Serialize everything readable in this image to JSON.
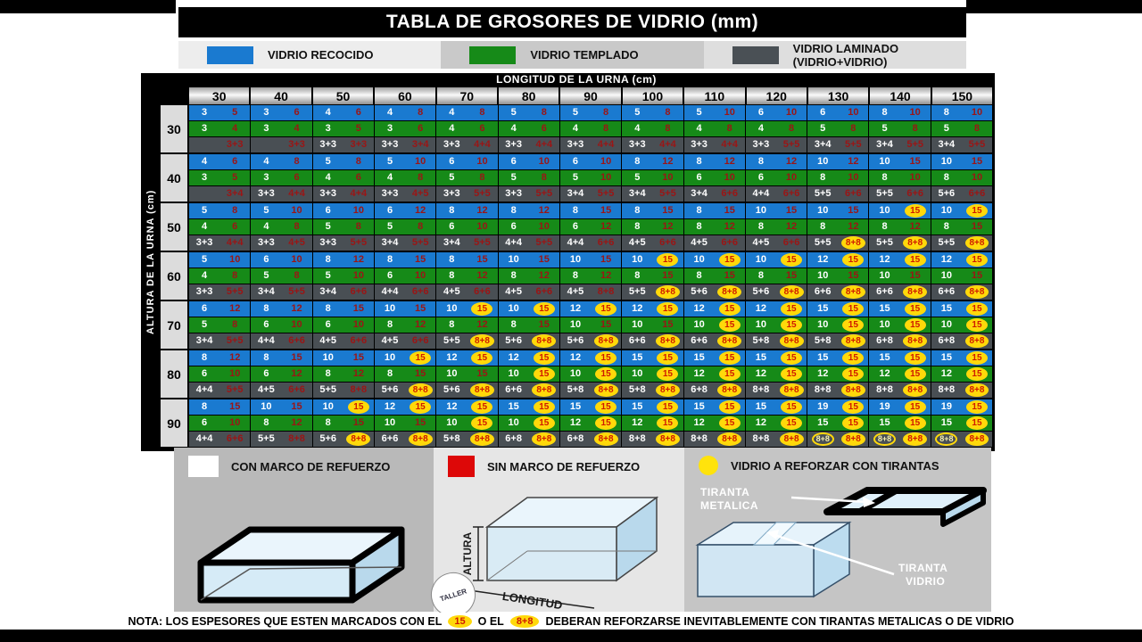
{
  "legend_top": {
    "items": [
      {
        "label": "VIDRIO RECOCIDO"
      },
      {
        "label": "VIDRIO TEMPLADO"
      },
      {
        "label": "VIDRIO LAMINADO (VIDRIO+VIDRIO)"
      }
    ]
  },
  "chart_data": {
    "type": "table",
    "title": "TABLA DE GROSORES DE VIDRIO (mm)",
    "col_axis_label": "LONGITUD DE LA URNA (cm)",
    "row_axis_label": "ALTURA DE LA URNA (cm)",
    "value_legend": "first value = con marco de refuerzo (white), second = sin marco de refuerzo (red), * = yellow circle (reforzar con tirantas), ^ = yellow ring",
    "columns": [
      "30",
      "40",
      "50",
      "60",
      "70",
      "80",
      "90",
      "100",
      "110",
      "120",
      "130",
      "140",
      "150"
    ],
    "rows": [
      {
        "altura": "30",
        "recocido": [
          "3;5",
          "3;6",
          "4;6",
          "4;8",
          "4;8",
          "5;8",
          "5;8",
          "5;8",
          "5;10",
          "6;10",
          "6;10",
          "8;10",
          "8;10"
        ],
        "templado": [
          "3;4",
          "3;4",
          "3;5",
          "3;6",
          "4;6",
          "4;6",
          "4;8",
          "4;8",
          "4;8",
          "4;8",
          "5;8",
          "5;8",
          "5;8"
        ],
        "laminado": [
          ";3+3",
          ";3+3",
          "3+3;3+3",
          "3+3;3+4",
          "3+3;4+4",
          "3+3;4+4",
          "3+3;4+4",
          "3+3;4+4",
          "3+3;4+4",
          "3+3;5+5",
          "3+4;5+5",
          "3+4;5+5",
          "3+4;5+5"
        ]
      },
      {
        "altura": "40",
        "recocido": [
          "4;6",
          "4;8",
          "5;8",
          "5;10",
          "6;10",
          "6;10",
          "6;10",
          "8;12",
          "8;12",
          "8;12",
          "10;12",
          "10;15",
          "10;15"
        ],
        "templado": [
          "3;5",
          "3;6",
          "4;6",
          "4;8",
          "5;8",
          "5;8",
          "5;10",
          "5;10",
          "6;10",
          "6;10",
          "8;10",
          "8;10",
          "8;10"
        ],
        "laminado": [
          ";3+4",
          "3+3;4+4",
          "3+3;4+4",
          "3+3;4+5",
          "3+3;5+5",
          "3+3;5+5",
          "3+4;5+5",
          "3+4;5+5",
          "3+4;6+6",
          "4+4;6+6",
          "5+5;6+6",
          "5+5;6+6",
          "5+6;6+6"
        ]
      },
      {
        "altura": "50",
        "recocido": [
          "5;8",
          "5;10",
          "6;10",
          "6;12",
          "8;12",
          "8;12",
          "8;15",
          "8;15",
          "8;15",
          "10;15",
          "10;15",
          "10;*15",
          "10;*15"
        ],
        "templado": [
          "4;6",
          "4;8",
          "5;8",
          "5;8",
          "6;10",
          "6;10",
          "6;12",
          "8;12",
          "8;12",
          "8;12",
          "8;12",
          "8;12",
          "8;15"
        ],
        "laminado": [
          "3+3;4+4",
          "3+3;4+5",
          "3+3;5+5",
          "3+4;5+5",
          "3+4;5+5",
          "4+4;5+5",
          "4+4;6+6",
          "4+5;6+6",
          "4+5;6+6",
          "4+5;6+6",
          "5+5;*8+8",
          "5+5;*8+8",
          "5+5;*8+8"
        ]
      },
      {
        "altura": "60",
        "recocido": [
          "5;10",
          "6;10",
          "8;12",
          "8;15",
          "8;15",
          "10;15",
          "10;15",
          "10;*15",
          "10;*15",
          "10;*15",
          "12;*15",
          "12;*15",
          "12;*15"
        ],
        "templado": [
          "4;8",
          "5;8",
          "5;10",
          "6;10",
          "8;12",
          "8;12",
          "8;12",
          "8;15",
          "8;15",
          "8;15",
          "10;15",
          "10;15",
          "10;15"
        ],
        "laminado": [
          "3+3;5+5",
          "3+4;5+5",
          "3+4;6+6",
          "4+4;6+6",
          "4+5;6+6",
          "4+5;6+6",
          "4+5;8+8",
          "5+5;*8+8",
          "5+6;*8+8",
          "5+6;*8+8",
          "6+6;*8+8",
          "6+6;*8+8",
          "6+6;*8+8"
        ]
      },
      {
        "altura": "70",
        "recocido": [
          "6;12",
          "8;12",
          "8;15",
          "10;15",
          "10;*15",
          "10;*15",
          "12;*15",
          "12;*15",
          "12;*15",
          "12;*15",
          "15;*15",
          "15;*15",
          "15;*15"
        ],
        "templado": [
          "5;8",
          "6;10",
          "6;10",
          "8;12",
          "8;12",
          "8;15",
          "10;15",
          "10;15",
          "10;*15",
          "10;*15",
          "10;*15",
          "10;*15",
          "10;*15"
        ],
        "laminado": [
          "3+4;5+5",
          "4+4;6+6",
          "4+5;6+6",
          "4+5;6+6",
          "5+5;*8+8",
          "5+6;*8+8",
          "5+6;*8+8",
          "6+6;*8+8",
          "6+6;*8+8",
          "5+8;*8+8",
          "5+8;*8+8",
          "6+8;*8+8",
          "6+8;*8+8"
        ]
      },
      {
        "altura": "80",
        "recocido": [
          "8;12",
          "8;15",
          "10;15",
          "10;*15",
          "12;*15",
          "12;*15",
          "12;*15",
          "15;*15",
          "15;*15",
          "15;*15",
          "15;*15",
          "15;*15",
          "15;*15"
        ],
        "templado": [
          "6;10",
          "6;12",
          "8;12",
          "8;15",
          "10;15",
          "10;*15",
          "10;*15",
          "10;*15",
          "12;*15",
          "12;*15",
          "12;*15",
          "12;*15",
          "12;*15"
        ],
        "laminado": [
          "4+4;5+5",
          "4+5;6+6",
          "5+5;8+8",
          "5+6;*8+8",
          "5+6;*8+8",
          "6+6;*8+8",
          "5+8;*8+8",
          "5+8;*8+8",
          "6+8;*8+8",
          "8+8;*8+8",
          "8+8;*8+8",
          "8+8;*8+8",
          "8+8;*8+8"
        ]
      },
      {
        "altura": "90",
        "recocido": [
          "8;15",
          "10;15",
          "10;*15",
          "12;*15",
          "12;*15",
          "15;*15",
          "15;*15",
          "15;*15",
          "15;*15",
          "15;*15",
          "19;*15",
          "19;*15",
          "19;*15"
        ],
        "templado": [
          "6;10",
          "8;12",
          "8;15",
          "10;15",
          "10;*15",
          "10;*15",
          "12;*15",
          "12;*15",
          "12;*15",
          "12;*15",
          "15;*15",
          "15;*15",
          "15;*15"
        ],
        "laminado": [
          "4+4;6+6",
          "5+5;8+8",
          "5+6;*8+8",
          "6+6;*8+8",
          "5+8;*8+8",
          "6+8;*8+8",
          "6+8;*8+8",
          "8+8;*8+8",
          "8+8;*8+8",
          "8+8;*8+8",
          "^8+8;*8+8",
          "^8+8;*8+8",
          "^8+8;*8+8"
        ]
      }
    ]
  },
  "legend_bottom": {
    "con_marco": "CON MARCO DE  REFUERZO",
    "sin_marco": "SIN MARCO DE REFUERZO",
    "tirantas": "VIDRIO A REFORZAR CON TIRANTAS",
    "altura": "ALTURA",
    "longitud": "LONGITUD",
    "tiranta_metalica_1": "TIRANTA",
    "tiranta_metalica_2": "METALICA",
    "tiranta_vidrio_1": "TIRANTA",
    "tiranta_vidrio_2": "VIDRIO"
  },
  "note": {
    "prefix": "NOTA: LOS ESPESORES QUE ESTEN MARCADOS CON EL",
    "badge1": "15",
    "middle": "O EL",
    "badge2": "8+8",
    "suffix": "DEBERAN REFORZARSE INEVITABLEMENTE CON TIRANTAS METALICAS O DE VIDRIO"
  },
  "logo_text": "TALLER"
}
